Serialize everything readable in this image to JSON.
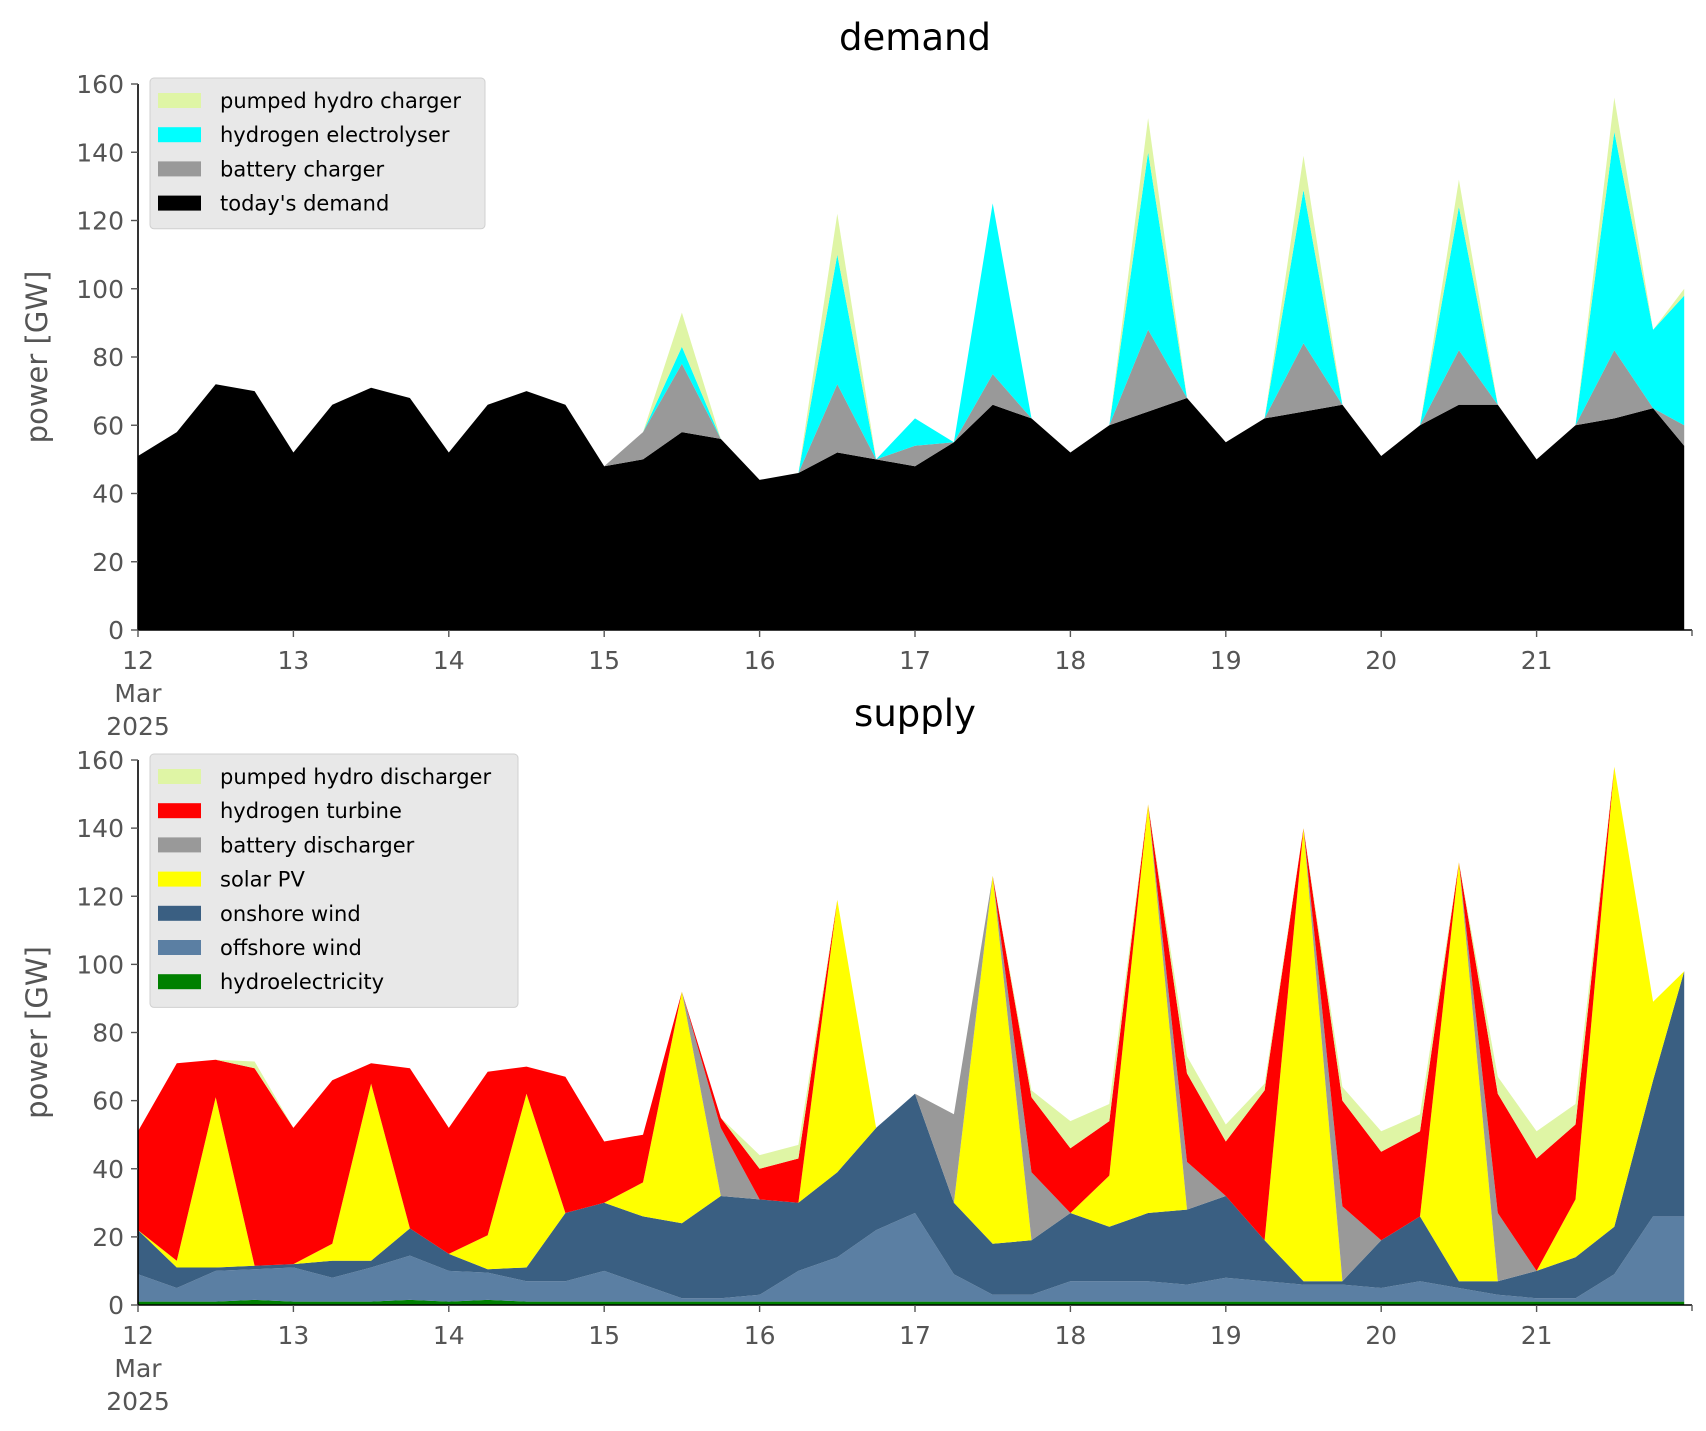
{
  "chart_data": [
    {
      "type": "area",
      "stacked": true,
      "title": "demand",
      "xlabel": "",
      "ylabel": "power [GW]",
      "ylim": [
        0,
        160
      ],
      "yticks": [
        0,
        20,
        40,
        60,
        80,
        100,
        120,
        140,
        160
      ],
      "xlim": [
        12,
        22
      ],
      "xticks": [
        12,
        13,
        14,
        15,
        16,
        17,
        18,
        19,
        20,
        21
      ],
      "xtick_labels": [
        "12",
        "13",
        "14",
        "15",
        "16",
        "17",
        "18",
        "19",
        "20",
        "21"
      ],
      "x_first_tick_sublabels": [
        "Mar",
        "2025"
      ],
      "legend_position": "top-left",
      "x": [
        12.0,
        12.25,
        12.5,
        12.75,
        13.0,
        13.25,
        13.5,
        13.75,
        14.0,
        14.25,
        14.5,
        14.75,
        15.0,
        15.25,
        15.5,
        15.75,
        16.0,
        16.25,
        16.5,
        16.75,
        17.0,
        17.25,
        17.5,
        17.75,
        18.0,
        18.25,
        18.5,
        18.75,
        19.0,
        19.25,
        19.5,
        19.75,
        20.0,
        20.25,
        20.5,
        20.75,
        21.0,
        21.25,
        21.5,
        21.75,
        21.95
      ],
      "series": [
        {
          "name": "today's demand",
          "color": "#000000",
          "values": [
            51,
            58,
            72,
            70,
            52,
            66,
            71,
            68,
            52,
            66,
            70,
            66,
            48,
            50,
            58,
            56,
            44,
            46,
            52,
            50,
            48,
            55,
            66,
            62,
            52,
            60,
            64,
            68,
            55,
            62,
            64,
            66,
            51,
            60,
            66,
            66,
            50,
            60,
            62,
            65,
            54
          ]
        },
        {
          "name": "battery charger",
          "color": "#999999",
          "values": [
            0,
            0,
            0,
            0,
            0,
            0,
            0,
            0,
            0,
            0,
            0,
            0,
            0,
            8,
            20,
            0,
            0,
            0,
            20,
            0,
            6,
            0,
            9,
            0,
            0,
            0,
            24,
            0,
            0,
            0,
            20,
            0,
            0,
            0,
            16,
            0,
            0,
            0,
            20,
            0,
            6
          ]
        },
        {
          "name": "hydrogen electrolyser",
          "color": "#00ffff",
          "values": [
            0,
            0,
            0,
            0,
            0,
            0,
            0,
            0,
            0,
            0,
            0,
            0,
            0,
            0,
            5,
            0,
            0,
            0,
            38,
            0,
            8,
            0,
            50,
            0,
            0,
            0,
            52,
            0,
            0,
            0,
            45,
            0,
            0,
            0,
            42,
            0,
            0,
            0,
            64,
            23,
            38
          ]
        },
        {
          "name": "pumped hydro charger",
          "color": "#dff5a5",
          "values": [
            0,
            0,
            0,
            0,
            0,
            0,
            0,
            0,
            0,
            0,
            0,
            0,
            0,
            0,
            10,
            0,
            0,
            0,
            12,
            0,
            0,
            0,
            0,
            0,
            0,
            0,
            10,
            0,
            0,
            0,
            10,
            0,
            0,
            0,
            8,
            0,
            0,
            0,
            10,
            0,
            2
          ]
        }
      ],
      "legend": [
        {
          "label": "pumped hydro charger",
          "color": "#dff5a5"
        },
        {
          "label": "hydrogen electrolyser",
          "color": "#00ffff"
        },
        {
          "label": "battery charger",
          "color": "#999999"
        },
        {
          "label": "today's demand",
          "color": "#000000"
        }
      ]
    },
    {
      "type": "area",
      "stacked": true,
      "title": "supply",
      "xlabel": "",
      "ylabel": "power [GW]",
      "ylim": [
        0,
        160
      ],
      "yticks": [
        0,
        20,
        40,
        60,
        80,
        100,
        120,
        140,
        160
      ],
      "xlim": [
        12,
        22
      ],
      "xticks": [
        12,
        13,
        14,
        15,
        16,
        17,
        18,
        19,
        20,
        21
      ],
      "xtick_labels": [
        "12",
        "13",
        "14",
        "15",
        "16",
        "17",
        "18",
        "19",
        "20",
        "21"
      ],
      "x_first_tick_sublabels": [
        "Mar",
        "2025"
      ],
      "legend_position": "top-left",
      "x": [
        12.0,
        12.25,
        12.5,
        12.75,
        13.0,
        13.25,
        13.5,
        13.75,
        14.0,
        14.25,
        14.5,
        14.75,
        15.0,
        15.25,
        15.5,
        15.75,
        16.0,
        16.25,
        16.5,
        16.75,
        17.0,
        17.25,
        17.5,
        17.75,
        18.0,
        18.25,
        18.5,
        18.75,
        19.0,
        19.25,
        19.5,
        19.75,
        20.0,
        20.25,
        20.5,
        20.75,
        21.0,
        21.25,
        21.5,
        21.75,
        21.95
      ],
      "series": [
        {
          "name": "hydroelectricity",
          "color": "#008000",
          "values": [
            1,
            1,
            1,
            1.5,
            1,
            1,
            1,
            1.5,
            1,
            1.5,
            1,
            1,
            1,
            1,
            1,
            1,
            1,
            1,
            1,
            1,
            1,
            1,
            1,
            1,
            1,
            1,
            1,
            1,
            1,
            1,
            1,
            1,
            1,
            1,
            1,
            1,
            1,
            1,
            1,
            1,
            1
          ]
        },
        {
          "name": "offshore wind",
          "color": "#5b7fa3",
          "values": [
            8,
            4,
            9,
            9,
            10,
            7,
            10,
            13,
            9,
            8,
            6,
            6,
            9,
            5,
            1,
            1,
            2,
            9,
            13,
            21,
            26,
            8,
            2,
            2,
            6,
            6,
            6,
            5,
            7,
            6,
            5,
            5,
            4,
            6,
            4,
            2,
            1,
            1,
            8,
            25,
            25
          ]
        },
        {
          "name": "onshore wind",
          "color": "#3a5f82",
          "values": [
            13,
            6,
            1,
            1,
            1,
            5,
            2,
            8,
            5,
            1,
            4,
            20,
            20,
            20,
            22,
            30,
            28,
            20,
            25,
            30,
            35,
            21,
            15,
            16,
            20,
            16,
            20,
            22,
            24,
            12,
            1,
            1,
            14,
            19,
            2,
            4,
            8,
            12,
            14,
            40,
            72
          ]
        },
        {
          "name": "solar PV",
          "color": "#ffff00",
          "values": [
            0,
            2,
            50,
            0,
            0,
            5,
            52,
            0,
            0,
            10,
            51,
            0,
            0,
            10,
            68,
            0,
            0,
            0,
            80,
            0,
            0,
            0,
            108,
            0,
            0,
            15,
            120,
            0,
            0,
            0,
            133,
            0,
            0,
            0,
            123,
            0,
            0,
            17,
            135,
            23,
            0
          ]
        },
        {
          "name": "battery discharger",
          "color": "#999999",
          "values": [
            0,
            0,
            0,
            0,
            0,
            0,
            0,
            0,
            0,
            0,
            0,
            0,
            0,
            0,
            0,
            20,
            0,
            0,
            0,
            0,
            0,
            26,
            0,
            20,
            0,
            0,
            0,
            14,
            0,
            0,
            0,
            22,
            0,
            0,
            0,
            20,
            0,
            0,
            0,
            0,
            0
          ]
        },
        {
          "name": "hydrogen turbine",
          "color": "#ff0000",
          "values": [
            29,
            58,
            11,
            58,
            40,
            48,
            6,
            47,
            37,
            48,
            8,
            40,
            18,
            14,
            0,
            3,
            9,
            13,
            0,
            0,
            0,
            0,
            0,
            22,
            19,
            16,
            0,
            26,
            16,
            44,
            0,
            31,
            26,
            25,
            0,
            35,
            33,
            22,
            0,
            0,
            0
          ]
        },
        {
          "name": "pumped hydro discharger",
          "color": "#dff5a5",
          "values": [
            0,
            0,
            0,
            2,
            0,
            0,
            0,
            0,
            0,
            0,
            0,
            0,
            0,
            0,
            0,
            0,
            4,
            4,
            0,
            0,
            0,
            0,
            0,
            2,
            8,
            5,
            0,
            5,
            5,
            2,
            0,
            4,
            6,
            5,
            0,
            5,
            8,
            6,
            0,
            0,
            0
          ]
        }
      ],
      "legend": [
        {
          "label": "pumped hydro discharger",
          "color": "#dff5a5"
        },
        {
          "label": "hydrogen turbine",
          "color": "#ff0000"
        },
        {
          "label": "battery discharger",
          "color": "#999999"
        },
        {
          "label": "solar PV",
          "color": "#ffff00"
        },
        {
          "label": "onshore wind",
          "color": "#3a5f82"
        },
        {
          "label": "offshore wind",
          "color": "#5b7fa3"
        },
        {
          "label": "hydroelectricity",
          "color": "#008000"
        }
      ]
    }
  ]
}
